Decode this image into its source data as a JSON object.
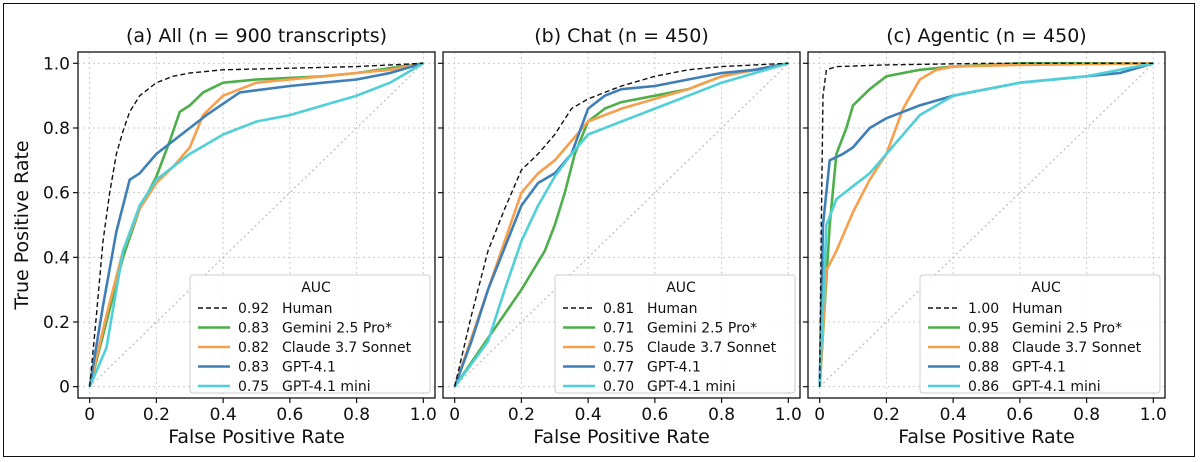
{
  "figure": {
    "ylabel": "True Positive Rate",
    "xlabel": "False Positive Rate",
    "legend_title": "AUC"
  },
  "colors": {
    "Human": "#111111",
    "Gemini 2.5 Pro*": "#4daf4a",
    "Claude 3.7 Sonnet": "#f89f4e",
    "GPT-4.1": "#3f7fb8",
    "GPT-4.1 mini": "#4fd0d8",
    "chance": "#bbbbbb",
    "grid": "#cccccc"
  },
  "chart_data": [
    {
      "type": "line",
      "title": "(a) All (n = 900 transcripts)",
      "xlabel": "False Positive Rate",
      "ylabel": "True Positive Rate",
      "xlim": [
        0,
        1
      ],
      "ylim": [
        0,
        1
      ],
      "xticks": [
        "0",
        "0.2",
        "0.4",
        "0.6",
        "0.8",
        "1.0"
      ],
      "yticks": [
        "0",
        "0.2",
        "0.4",
        "0.6",
        "0.8",
        "1.0"
      ],
      "legend_title": "AUC",
      "legend_position": "lower-right",
      "series": [
        {
          "name": "Human",
          "auc": "0.92",
          "style": "dashed",
          "x": [
            0,
            0.02,
            0.04,
            0.06,
            0.08,
            0.1,
            0.12,
            0.15,
            0.2,
            0.25,
            0.3,
            0.4,
            0.6,
            0.8,
            1.0
          ],
          "y": [
            0,
            0.22,
            0.45,
            0.6,
            0.72,
            0.79,
            0.85,
            0.9,
            0.94,
            0.96,
            0.97,
            0.98,
            0.985,
            0.99,
            1.0
          ]
        },
        {
          "name": "Gemini 2.5 Pro*",
          "auc": "0.83",
          "style": "solid",
          "x": [
            0,
            0.05,
            0.1,
            0.15,
            0.2,
            0.24,
            0.27,
            0.3,
            0.34,
            0.4,
            0.5,
            0.6,
            0.7,
            0.8,
            0.9,
            1.0
          ],
          "y": [
            0,
            0.2,
            0.4,
            0.55,
            0.65,
            0.76,
            0.85,
            0.87,
            0.91,
            0.94,
            0.95,
            0.955,
            0.96,
            0.97,
            0.985,
            1.0
          ]
        },
        {
          "name": "Claude 3.7 Sonnet",
          "auc": "0.82",
          "style": "solid",
          "x": [
            0,
            0.05,
            0.1,
            0.15,
            0.2,
            0.25,
            0.3,
            0.34,
            0.4,
            0.5,
            0.6,
            0.7,
            0.8,
            0.9,
            1.0
          ],
          "y": [
            0,
            0.22,
            0.42,
            0.55,
            0.63,
            0.68,
            0.74,
            0.84,
            0.9,
            0.94,
            0.95,
            0.96,
            0.97,
            0.98,
            1.0
          ]
        },
        {
          "name": "GPT-4.1",
          "auc": "0.83",
          "style": "solid",
          "x": [
            0,
            0.04,
            0.08,
            0.12,
            0.15,
            0.2,
            0.3,
            0.35,
            0.45,
            0.6,
            0.7,
            0.8,
            0.9,
            1.0
          ],
          "y": [
            0,
            0.25,
            0.48,
            0.64,
            0.66,
            0.72,
            0.8,
            0.84,
            0.91,
            0.93,
            0.94,
            0.95,
            0.97,
            1.0
          ]
        },
        {
          "name": "GPT-4.1 mini",
          "auc": "0.75",
          "style": "solid",
          "x": [
            0,
            0.05,
            0.1,
            0.15,
            0.2,
            0.3,
            0.35,
            0.4,
            0.5,
            0.6,
            0.7,
            0.8,
            0.9,
            1.0
          ],
          "y": [
            0,
            0.12,
            0.42,
            0.56,
            0.64,
            0.72,
            0.75,
            0.78,
            0.82,
            0.84,
            0.87,
            0.9,
            0.94,
            1.0
          ]
        }
      ]
    },
    {
      "type": "line",
      "title": "(b) Chat (n = 450)",
      "xlabel": "False Positive Rate",
      "ylabel": "",
      "xlim": [
        0,
        1
      ],
      "ylim": [
        0,
        1
      ],
      "xticks": [
        "0",
        "0.2",
        "0.4",
        "0.6",
        "0.8",
        "1.0"
      ],
      "yticks": [],
      "legend_title": "AUC",
      "legend_position": "lower-right",
      "series": [
        {
          "name": "Human",
          "auc": "0.81",
          "style": "dashed",
          "x": [
            0,
            0.05,
            0.1,
            0.15,
            0.2,
            0.25,
            0.3,
            0.35,
            0.4,
            0.45,
            0.5,
            0.6,
            0.7,
            0.8,
            0.9,
            1.0
          ],
          "y": [
            0,
            0.22,
            0.42,
            0.55,
            0.67,
            0.72,
            0.78,
            0.86,
            0.89,
            0.91,
            0.93,
            0.96,
            0.98,
            0.99,
            0.995,
            1.0
          ]
        },
        {
          "name": "Gemini 2.5 Pro*",
          "auc": "0.71",
          "style": "solid",
          "x": [
            0,
            0.1,
            0.2,
            0.27,
            0.3,
            0.33,
            0.36,
            0.4,
            0.45,
            0.5,
            0.6,
            0.7,
            0.8,
            0.9,
            1.0
          ],
          "y": [
            0,
            0.15,
            0.3,
            0.42,
            0.5,
            0.6,
            0.72,
            0.82,
            0.86,
            0.88,
            0.9,
            0.92,
            0.96,
            0.98,
            1.0
          ]
        },
        {
          "name": "Claude 3.7 Sonnet",
          "auc": "0.75",
          "style": "solid",
          "x": [
            0,
            0.05,
            0.1,
            0.15,
            0.2,
            0.25,
            0.3,
            0.35,
            0.4,
            0.5,
            0.6,
            0.7,
            0.8,
            0.9,
            1.0
          ],
          "y": [
            0,
            0.15,
            0.3,
            0.45,
            0.6,
            0.66,
            0.7,
            0.76,
            0.82,
            0.86,
            0.89,
            0.92,
            0.96,
            0.98,
            1.0
          ]
        },
        {
          "name": "GPT-4.1",
          "auc": "0.77",
          "style": "solid",
          "x": [
            0,
            0.05,
            0.1,
            0.15,
            0.2,
            0.25,
            0.3,
            0.35,
            0.4,
            0.45,
            0.5,
            0.6,
            0.7,
            0.8,
            0.9,
            1.0
          ],
          "y": [
            0,
            0.14,
            0.3,
            0.43,
            0.56,
            0.63,
            0.66,
            0.72,
            0.86,
            0.9,
            0.92,
            0.93,
            0.95,
            0.97,
            0.98,
            1.0
          ]
        },
        {
          "name": "GPT-4.1 mini",
          "auc": "0.70",
          "style": "solid",
          "x": [
            0,
            0.1,
            0.15,
            0.2,
            0.25,
            0.3,
            0.35,
            0.4,
            0.5,
            0.6,
            0.7,
            0.8,
            0.9,
            1.0
          ],
          "y": [
            0,
            0.14,
            0.3,
            0.45,
            0.56,
            0.65,
            0.72,
            0.78,
            0.82,
            0.86,
            0.9,
            0.94,
            0.97,
            1.0
          ]
        }
      ]
    },
    {
      "type": "line",
      "title": "(c) Agentic (n = 450)",
      "xlabel": "False Positive Rate",
      "ylabel": "",
      "xlim": [
        0,
        1
      ],
      "ylim": [
        0,
        1
      ],
      "xticks": [
        "0",
        "0.2",
        "0.4",
        "0.6",
        "0.8",
        "1.0"
      ],
      "yticks": [],
      "legend_title": "AUC",
      "legend_position": "lower-right",
      "series": [
        {
          "name": "Human",
          "auc": "1.00",
          "style": "dashed",
          "x": [
            0,
            0.005,
            0.01,
            0.02,
            0.05,
            0.2,
            0.5,
            1.0
          ],
          "y": [
            0,
            0.5,
            0.9,
            0.98,
            0.99,
            0.995,
            1.0,
            1.0
          ]
        },
        {
          "name": "Gemini 2.5 Pro*",
          "auc": "0.95",
          "style": "solid",
          "x": [
            0,
            0.03,
            0.05,
            0.08,
            0.1,
            0.15,
            0.2,
            0.25,
            0.3,
            0.4,
            0.6,
            1.0
          ],
          "y": [
            0,
            0.5,
            0.72,
            0.8,
            0.87,
            0.92,
            0.96,
            0.97,
            0.98,
            0.99,
            1.0,
            1.0
          ]
        },
        {
          "name": "Claude 3.7 Sonnet",
          "auc": "0.88",
          "style": "solid",
          "x": [
            0,
            0.02,
            0.05,
            0.1,
            0.15,
            0.2,
            0.25,
            0.3,
            0.35,
            0.4,
            0.6,
            1.0
          ],
          "y": [
            0,
            0.36,
            0.42,
            0.54,
            0.64,
            0.72,
            0.86,
            0.95,
            0.98,
            0.99,
            0.995,
            1.0
          ]
        },
        {
          "name": "GPT-4.1",
          "auc": "0.88",
          "style": "solid",
          "x": [
            0,
            0.01,
            0.03,
            0.07,
            0.1,
            0.15,
            0.2,
            0.25,
            0.3,
            0.4,
            0.6,
            0.8,
            0.9,
            1.0
          ],
          "y": [
            0,
            0.5,
            0.7,
            0.72,
            0.74,
            0.8,
            0.83,
            0.85,
            0.87,
            0.9,
            0.94,
            0.96,
            0.97,
            1.0
          ]
        },
        {
          "name": "GPT-4.1 mini",
          "auc": "0.86",
          "style": "solid",
          "x": [
            0,
            0.02,
            0.05,
            0.1,
            0.15,
            0.2,
            0.25,
            0.3,
            0.4,
            0.6,
            0.8,
            1.0
          ],
          "y": [
            0,
            0.5,
            0.58,
            0.62,
            0.66,
            0.72,
            0.78,
            0.84,
            0.9,
            0.94,
            0.96,
            1.0
          ]
        }
      ]
    }
  ]
}
